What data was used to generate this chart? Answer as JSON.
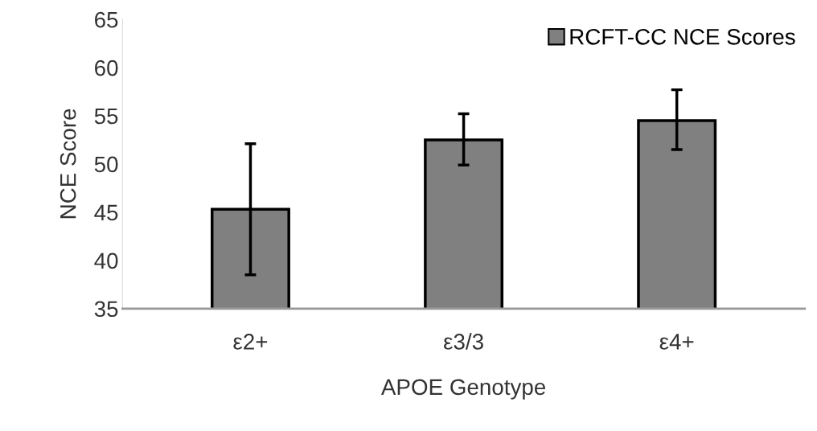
{
  "chart_data": {
    "type": "bar",
    "xlabel": "APOE Genotype",
    "ylabel": "NCE Score",
    "categories": [
      "ε2+",
      "ε3/3",
      "ε4+"
    ],
    "series": [
      {
        "name": "RCFT-CC NCE Scores",
        "color": "#808080",
        "values": [
          45.3,
          52.5,
          54.5
        ],
        "errors": [
          [
            38.5,
            52.1
          ],
          [
            49.9,
            55.2
          ],
          [
            51.5,
            57.7
          ]
        ]
      }
    ],
    "ylim": [
      35,
      65
    ],
    "yticks": [
      35,
      40,
      45,
      50,
      55,
      60,
      65
    ],
    "grid": false,
    "legend": "top right"
  }
}
